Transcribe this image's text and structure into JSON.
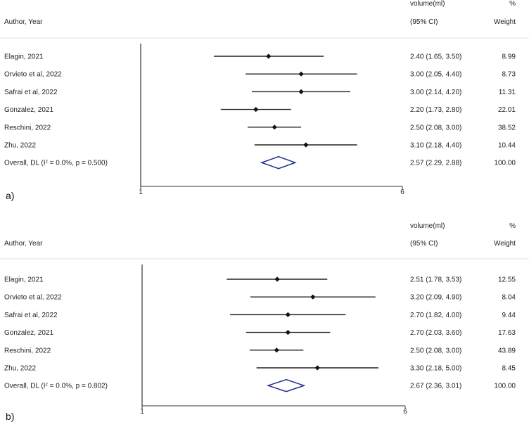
{
  "chart_data": [
    {
      "type": "forest",
      "panel_label": "a)",
      "header": {
        "study_col": "Author, Year",
        "effect_line1": "volume(ml)",
        "effect_line2": "(95% CI)",
        "weight_line1": "%",
        "weight_line2": "Weight"
      },
      "axis": {
        "scale": "log",
        "null_value": 1,
        "ticks": [
          1,
          6
        ]
      },
      "studies": [
        {
          "label": "Elagin, 2021",
          "est": 2.4,
          "lo": 1.65,
          "hi": 3.5,
          "ci_text": "2.40 (1.65, 3.50)",
          "weight": "8.99"
        },
        {
          "label": "Orvieto et al, 2022",
          "est": 3.0,
          "lo": 2.05,
          "hi": 4.4,
          "ci_text": "3.00 (2.05, 4.40)",
          "weight": "8.73"
        },
        {
          "label": "Safrai et al, 2022",
          "est": 3.0,
          "lo": 2.14,
          "hi": 4.2,
          "ci_text": "3.00 (2.14, 4.20)",
          "weight": "11.31"
        },
        {
          "label": "Gonzalez, 2021",
          "est": 2.2,
          "lo": 1.73,
          "hi": 2.8,
          "ci_text": "2.20 (1.73, 2.80)",
          "weight": "22.01"
        },
        {
          "label": "Reschini, 2022",
          "est": 2.5,
          "lo": 2.08,
          "hi": 3.0,
          "ci_text": "2.50 (2.08, 3.00)",
          "weight": "38.52"
        },
        {
          "label": "Zhu, 2022",
          "est": 3.1,
          "lo": 2.18,
          "hi": 4.4,
          "ci_text": "3.10 (2.18, 4.40)",
          "weight": "10.44"
        }
      ],
      "overall": {
        "label_prefix": "Overall, DL (I",
        "label_sup": "2",
        "label_suffix": " = 0.0%, p = 0.500)",
        "est": 2.57,
        "lo": 2.29,
        "hi": 2.88,
        "ci_text": "2.57 (2.29, 2.88)",
        "weight": "100.00"
      },
      "diamond_color": "#1f2a8c"
    },
    {
      "type": "forest",
      "panel_label": "b)",
      "header": {
        "study_col": "Author, Year",
        "effect_line1": "volume(ml)",
        "effect_line2": "(95% CI)",
        "weight_line1": "%",
        "weight_line2": "Weight"
      },
      "axis": {
        "scale": "log",
        "null_value": 1,
        "ticks": [
          1,
          6
        ]
      },
      "studies": [
        {
          "label": "Elagin, 2021",
          "est": 2.51,
          "lo": 1.78,
          "hi": 3.53,
          "ci_text": "2.51 (1.78, 3.53)",
          "weight": "12.55"
        },
        {
          "label": "Orvieto et al, 2022",
          "est": 3.2,
          "lo": 2.09,
          "hi": 4.9,
          "ci_text": "3.20 (2.09, 4.90)",
          "weight": "8.04"
        },
        {
          "label": "Safrai et al, 2022",
          "est": 2.7,
          "lo": 1.82,
          "hi": 4.0,
          "ci_text": "2.70 (1.82, 4.00)",
          "weight": "9.44"
        },
        {
          "label": "Gonzalez, 2021",
          "est": 2.7,
          "lo": 2.03,
          "hi": 3.6,
          "ci_text": "2.70 (2.03, 3.60)",
          "weight": "17.63"
        },
        {
          "label": "Reschini, 2022",
          "est": 2.5,
          "lo": 2.08,
          "hi": 3.0,
          "ci_text": "2.50 (2.08, 3.00)",
          "weight": "43.89"
        },
        {
          "label": "Zhu, 2022",
          "est": 3.3,
          "lo": 2.18,
          "hi": 5.0,
          "ci_text": "3.30 (2.18, 5.00)",
          "weight": "8.45"
        }
      ],
      "overall": {
        "label_prefix": "Overall, DL (I",
        "label_sup": "2",
        "label_suffix": " = 0.0%, p = 0.802)",
        "est": 2.67,
        "lo": 2.36,
        "hi": 3.01,
        "ci_text": "2.67 (2.36, 3.01)",
        "weight": "100.00"
      },
      "diamond_color": "#1f2a8c"
    }
  ]
}
